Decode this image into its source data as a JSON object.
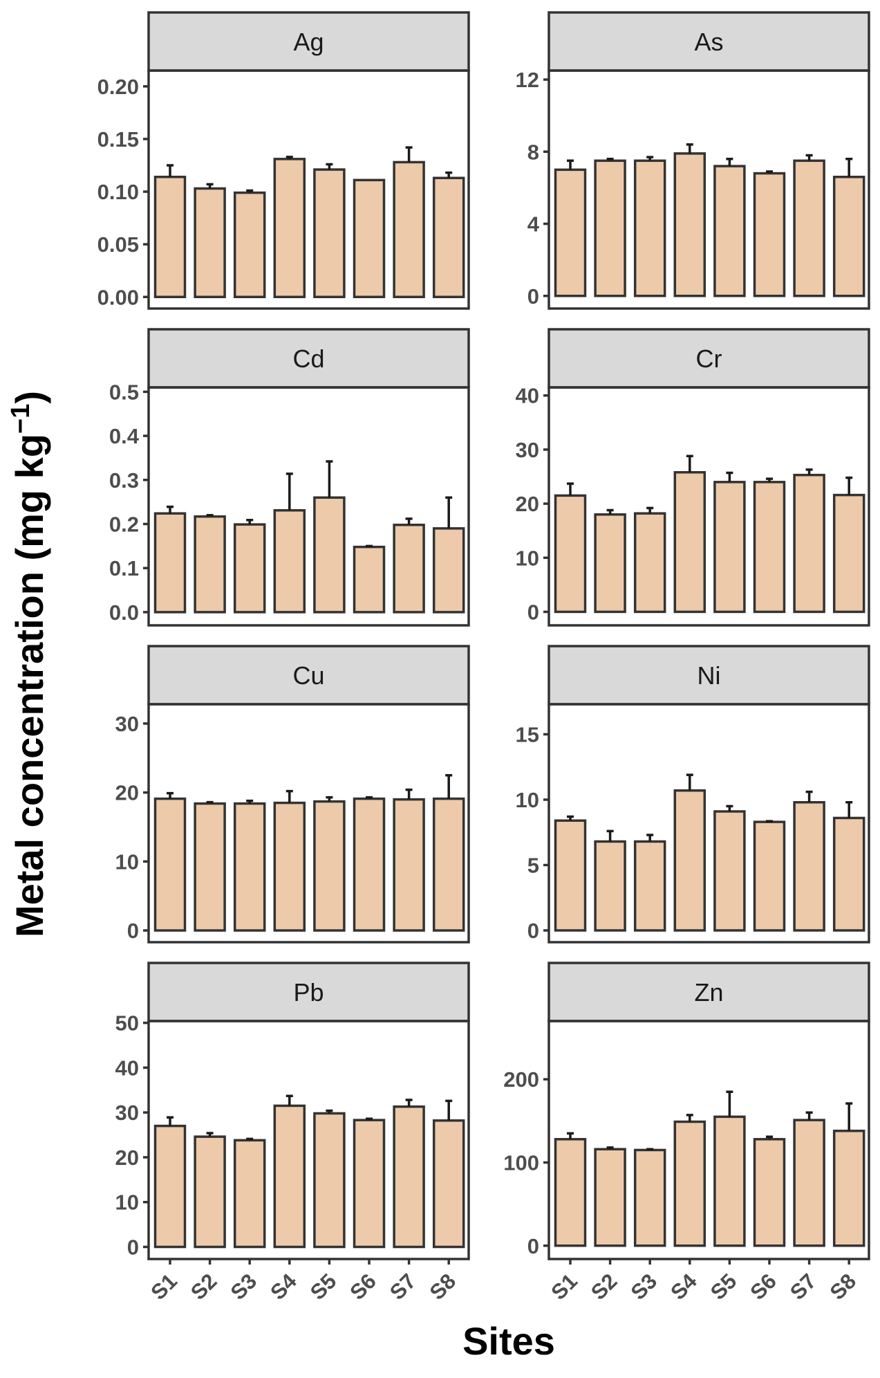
{
  "chart_data": {
    "type": "bar",
    "layout": "facet-grid 4 rows x 2 columns",
    "xlabel": "Sites",
    "ylabel": "Metal concentration (mg kg",
    "ylabel_superscript": "−1",
    "ylabel_close": ")",
    "categories": [
      "S1",
      "S2",
      "S3",
      "S4",
      "S5",
      "S6",
      "S7",
      "S8"
    ],
    "colors": {
      "bar_fill": "#EDCAAA",
      "bar_stroke": "#333333",
      "strip_fill": "#d9d9d9"
    },
    "panels": [
      {
        "metal": "Ag",
        "ylim": [
          -0.011,
          0.215
        ],
        "ticks": [
          0,
          0.05,
          0.1,
          0.15,
          0.2
        ],
        "tick_labels": [
          "0.00",
          "0.05",
          "0.10",
          "0.15",
          "0.20"
        ],
        "values": [
          0.114,
          0.103,
          0.099,
          0.131,
          0.121,
          0.111,
          0.128,
          0.113
        ],
        "errors": [
          0.011,
          0.004,
          0.002,
          0.002,
          0.005,
          0,
          0.014,
          0.005
        ]
      },
      {
        "metal": "As",
        "ylim": [
          -0.7,
          12.5
        ],
        "ticks": [
          0,
          4,
          8,
          12
        ],
        "tick_labels": [
          "0",
          "4",
          "8",
          "12"
        ],
        "values": [
          7.0,
          7.5,
          7.5,
          7.9,
          7.2,
          6.8,
          7.5,
          6.6
        ],
        "errors": [
          0.5,
          0.1,
          0.2,
          0.5,
          0.4,
          0.1,
          0.3,
          1.0
        ]
      },
      {
        "metal": "Cd",
        "ylim": [
          -0.03,
          0.51
        ],
        "ticks": [
          0,
          0.1,
          0.2,
          0.3,
          0.4,
          0.5
        ],
        "tick_labels": [
          "0.0",
          "0.1",
          "0.2",
          "0.3",
          "0.4",
          "0.5"
        ],
        "values": [
          0.224,
          0.217,
          0.199,
          0.231,
          0.26,
          0.148,
          0.198,
          0.19
        ],
        "errors": [
          0.015,
          0.003,
          0.01,
          0.083,
          0.082,
          0.002,
          0.014,
          0.07
        ]
      },
      {
        "metal": "Cr",
        "ylim": [
          -2.5,
          41.5
        ],
        "ticks": [
          0,
          10,
          20,
          30,
          40
        ],
        "tick_labels": [
          "0",
          "10",
          "20",
          "30",
          "40"
        ],
        "values": [
          21.5,
          18.0,
          18.2,
          25.8,
          24.0,
          24.0,
          25.3,
          21.6
        ],
        "errors": [
          2.2,
          0.8,
          1.0,
          3.0,
          1.7,
          0.6,
          1.0,
          3.2
        ]
      },
      {
        "metal": "Cu",
        "ylim": [
          -1.7,
          32.8
        ],
        "ticks": [
          0,
          10,
          20,
          30
        ],
        "tick_labels": [
          "0",
          "10",
          "20",
          "30"
        ],
        "values": [
          19.1,
          18.4,
          18.4,
          18.5,
          18.7,
          19.1,
          19.0,
          19.1
        ],
        "errors": [
          0.8,
          0.2,
          0.4,
          1.7,
          0.6,
          0.2,
          1.4,
          3.4
        ]
      },
      {
        "metal": "Ni",
        "ylim": [
          -0.9,
          17.3
        ],
        "ticks": [
          0,
          5,
          10,
          15
        ],
        "tick_labels": [
          "0",
          "5",
          "10",
          "15"
        ],
        "values": [
          8.4,
          6.8,
          6.8,
          10.7,
          9.1,
          8.3,
          9.8,
          8.6
        ],
        "errors": [
          0.3,
          0.8,
          0.5,
          1.2,
          0.4,
          0.05,
          0.8,
          1.2
        ]
      },
      {
        "metal": "Pb",
        "ylim": [
          -2.7,
          50.4
        ],
        "ticks": [
          0,
          10,
          20,
          30,
          40,
          50
        ],
        "tick_labels": [
          "0",
          "10",
          "20",
          "30",
          "40",
          "50"
        ],
        "values": [
          27.0,
          24.6,
          23.8,
          31.5,
          29.8,
          28.3,
          31.3,
          28.2
        ],
        "errors": [
          1.9,
          0.8,
          0.3,
          2.2,
          0.6,
          0.3,
          1.5,
          4.4
        ]
      },
      {
        "metal": "Zn",
        "ylim": [
          -16,
          270
        ],
        "ticks": [
          0,
          100,
          200
        ],
        "tick_labels": [
          "0",
          "100",
          "200"
        ],
        "values": [
          128,
          116,
          115,
          149,
          155,
          128,
          151,
          138
        ],
        "errors": [
          7,
          2,
          1,
          8,
          30,
          3,
          9,
          33
        ]
      }
    ]
  }
}
